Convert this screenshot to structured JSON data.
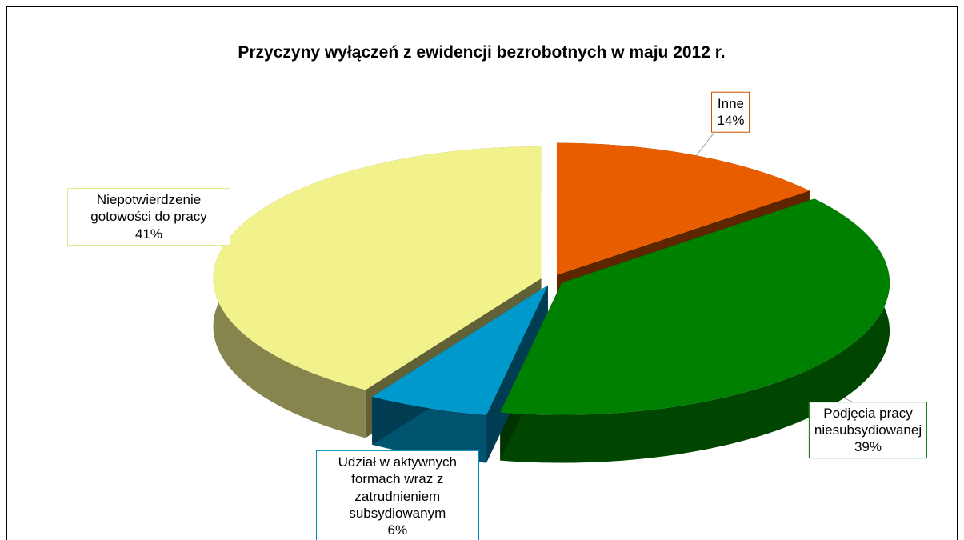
{
  "chart_data": {
    "type": "pie",
    "title": "Przyczyny wyłączeń z ewidencji bezrobotnych w maju 2012 r.",
    "categories": [
      "Inne",
      "Podjęcia pracy niesubsydiowanej",
      "Udział w aktywnych formach wraz z zatrudnieniem subsydiowanym",
      "Niepotwierdzenie gotowości do pracy"
    ],
    "values": [
      14,
      39,
      6,
      41
    ],
    "value_labels": [
      "14%",
      "39%",
      "6%",
      "41%"
    ],
    "colors": [
      "#e85d00",
      "#008000",
      "#0099cc",
      "#f2f28c"
    ]
  }
}
